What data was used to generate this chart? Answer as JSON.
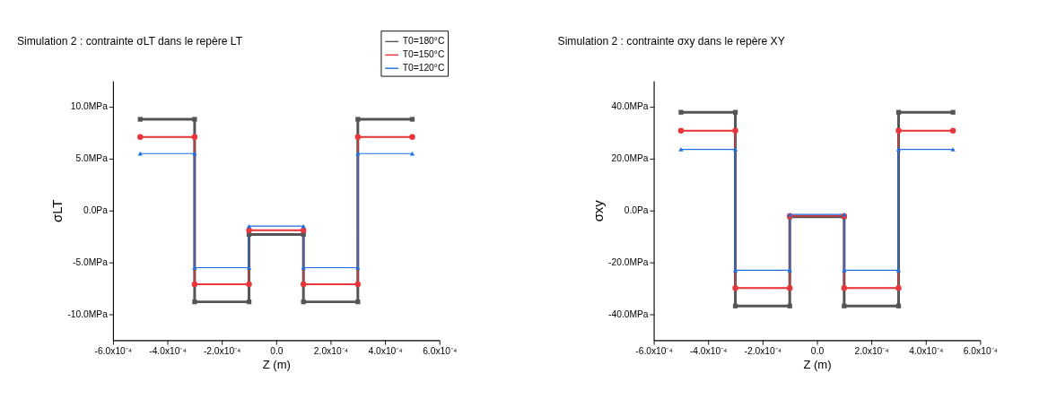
{
  "chart_data": [
    {
      "type": "line",
      "title": "Simulation 2 : contrainte σLT dans le repère LT",
      "xlabel": "Z (m)",
      "ylabel": "σLT",
      "x": [
        -0.0005,
        -0.0003,
        -0.0003,
        -0.0001,
        -0.0001,
        0.0001,
        0.0001,
        0.0003,
        0.0003,
        0.0005
      ],
      "series": [
        {
          "name": "T0=180°C",
          "color": "#555555",
          "marker": "square",
          "values": [
            8.8,
            8.8,
            -8.8,
            -8.8,
            -2.3,
            -2.3,
            -8.8,
            -8.8,
            8.8,
            8.8
          ]
        },
        {
          "name": "T0=150°C",
          "color": "#e8363a",
          "marker": "circle",
          "values": [
            7.1,
            7.1,
            -7.1,
            -7.1,
            -1.9,
            -1.9,
            -7.1,
            -7.1,
            7.1,
            7.1
          ]
        },
        {
          "name": "T0=120°C",
          "color": "#1f6fe0",
          "marker": "triangle",
          "values": [
            5.5,
            5.5,
            -5.5,
            -5.5,
            -1.5,
            -1.5,
            -5.5,
            -5.5,
            5.5,
            5.5
          ]
        }
      ],
      "xlim": [
        -0.0006,
        0.0006
      ],
      "xticks": [
        {
          "value": -0.0006,
          "label": "-6.0x10⁻⁴"
        },
        {
          "value": -0.0004,
          "label": "-4.0x10⁻⁴"
        },
        {
          "value": -0.0002,
          "label": "-2.0x10⁻⁴"
        },
        {
          "value": 0,
          "label": "0.0"
        },
        {
          "value": 0.0002,
          "label": "2.0x10⁻⁴"
        },
        {
          "value": 0.0004,
          "label": "4.0x10⁻⁴"
        },
        {
          "value": 0.0006,
          "label": "6.0x10⁻⁴"
        }
      ],
      "ylim": [
        -12.5,
        12.5
      ],
      "yticks": [
        {
          "value": -10,
          "label": "-10.0MPa"
        },
        {
          "value": -5,
          "label": "-5.0MPa"
        },
        {
          "value": 0,
          "label": "0.0Pa"
        },
        {
          "value": 5,
          "label": "5.0MPa"
        },
        {
          "value": 10,
          "label": "10.0MPa"
        }
      ],
      "grid": false,
      "legend": "top right",
      "line_style": "solid"
    },
    {
      "type": "line",
      "title": "Simulation 2 : contrainte σxy dans le repère XY",
      "xlabel": "Z (m)",
      "ylabel": "σxy",
      "x": [
        -0.0005,
        -0.0003,
        -0.0003,
        -0.0001,
        -0.0001,
        0.0001,
        0.0001,
        0.0003,
        0.0003,
        0.0005
      ],
      "series": [
        {
          "name": "T0=180°C",
          "color": "#555555",
          "marker": "square",
          "values": [
            37.9,
            37.9,
            -36.8,
            -36.8,
            -2.4,
            -2.4,
            -36.8,
            -36.8,
            37.9,
            37.9
          ]
        },
        {
          "name": "T0=150°C",
          "color": "#e8363a",
          "marker": "circle",
          "values": [
            30.8,
            30.8,
            -29.9,
            -29.9,
            -2.1,
            -2.1,
            -29.9,
            -29.9,
            30.8,
            30.8
          ]
        },
        {
          "name": "T0=120°C",
          "color": "#1f6fe0",
          "marker": "triangle",
          "values": [
            23.6,
            23.6,
            -23.0,
            -23.0,
            -1.5,
            -1.5,
            -23.0,
            -23.0,
            23.6,
            23.6
          ]
        }
      ],
      "xlim": [
        -0.0006,
        0.0006
      ],
      "xticks": [
        {
          "value": -0.0006,
          "label": "-6.0x10⁻⁴"
        },
        {
          "value": -0.0004,
          "label": "-4.0x10⁻⁴"
        },
        {
          "value": -0.0002,
          "label": "-2.0x10⁻⁴"
        },
        {
          "value": 0,
          "label": "0.0"
        },
        {
          "value": 0.0002,
          "label": "2.0x10⁻⁴"
        },
        {
          "value": 0.0004,
          "label": "4.0x10⁻⁴"
        },
        {
          "value": 0.0006,
          "label": "6.0x10⁻⁴"
        }
      ],
      "ylim": [
        -50,
        50
      ],
      "yticks": [
        {
          "value": -40,
          "label": "-40.0MPa"
        },
        {
          "value": -20,
          "label": "-20.0MPa"
        },
        {
          "value": 0,
          "label": "0.0Pa"
        },
        {
          "value": 20,
          "label": "20.0MPa"
        },
        {
          "value": 40,
          "label": "40.0MPa"
        }
      ],
      "grid": false,
      "legend": "top right",
      "line_style": "solid"
    }
  ]
}
